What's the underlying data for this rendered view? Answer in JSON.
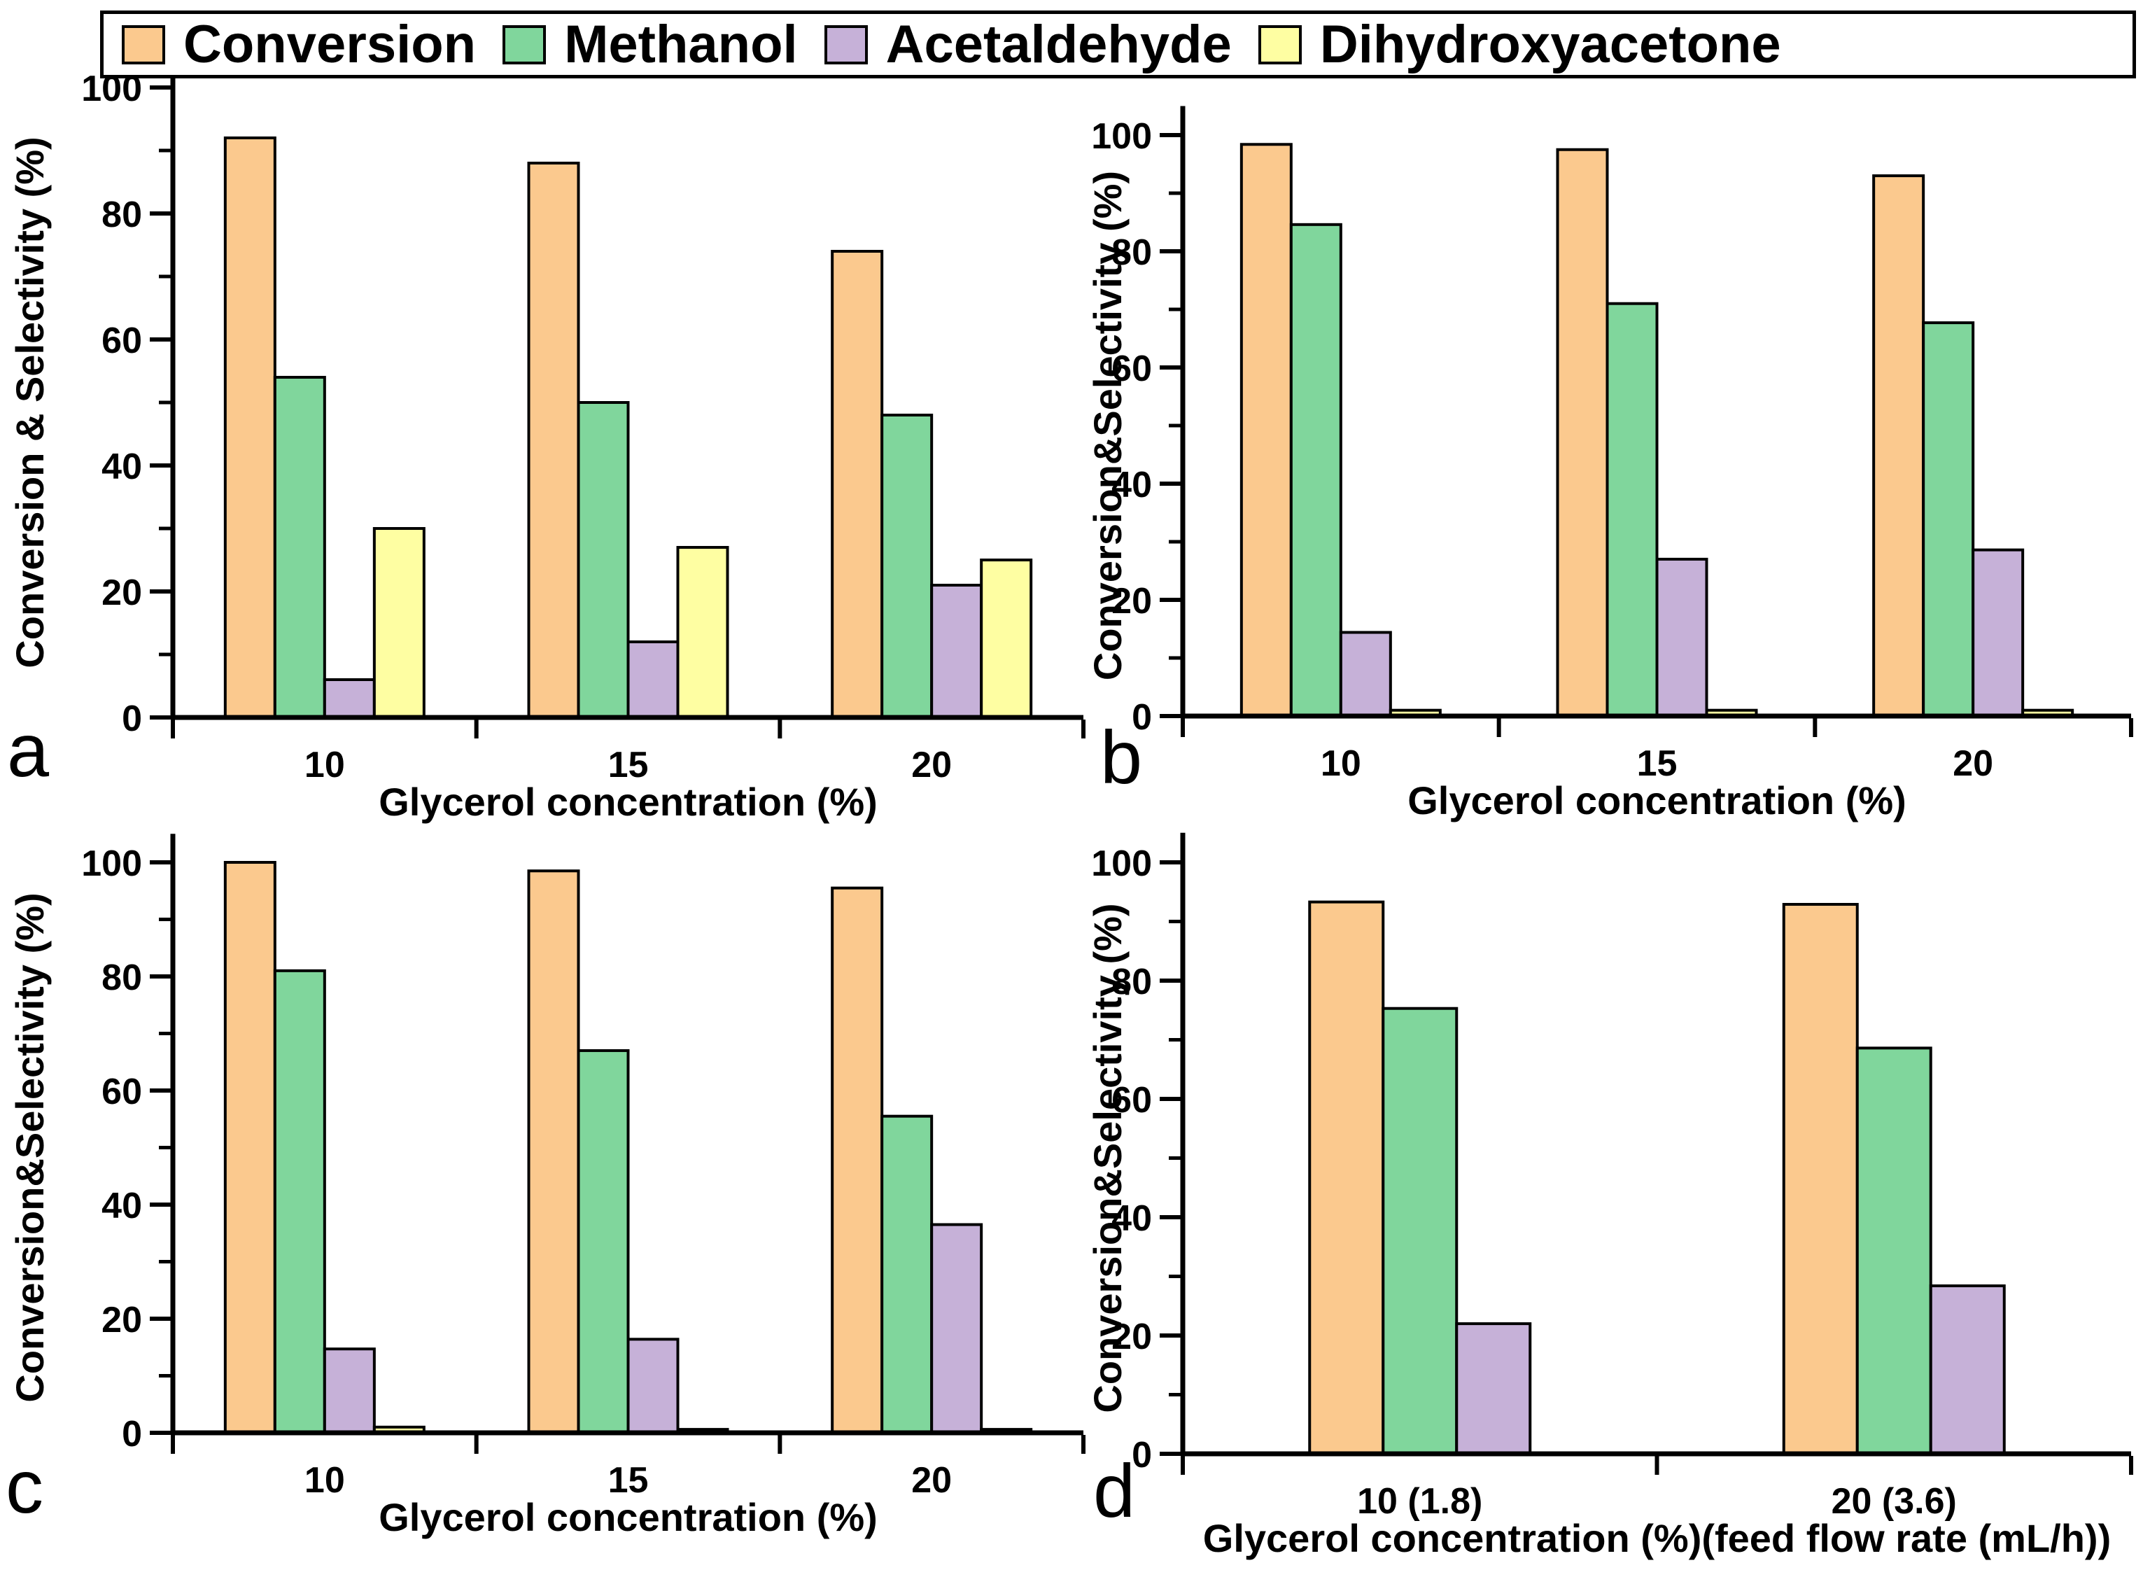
{
  "figure": {
    "background": "#ffffff",
    "text_color": "#000000",
    "legend_position": "top",
    "grid": false
  },
  "legend": {
    "items": [
      {
        "label": "Conversion",
        "color": "#FBC98E"
      },
      {
        "label": "Methanol",
        "color": "#80D69C"
      },
      {
        "label": "Acetaldehyde",
        "color": "#C6B1D8"
      },
      {
        "label": "Dihydroxyacetone",
        "color": "#FEFEA2"
      }
    ]
  },
  "chart_data": [
    {
      "type": "bar",
      "panel_letter": "a",
      "xlabel": "Glycerol concentration (%)",
      "ylabel": "Conversion & Selectivity (%)",
      "categories": [
        "10",
        "15",
        "20"
      ],
      "ylim": [
        0,
        105
      ],
      "yticks": [
        0,
        20,
        40,
        60,
        80,
        100
      ],
      "minor_tick_step": 10,
      "series": [
        {
          "name": "Conversion",
          "values": [
            92,
            88,
            74
          ]
        },
        {
          "name": "Methanol",
          "values": [
            54,
            50,
            48
          ]
        },
        {
          "name": "Acetaldehyde",
          "values": [
            6,
            12,
            21
          ]
        },
        {
          "name": "Dihydroxyacetone",
          "values": [
            30,
            27,
            25
          ]
        }
      ]
    },
    {
      "type": "bar",
      "panel_letter": "b",
      "xlabel": "Glycerol concentration (%)",
      "ylabel": "Conversion&Selectivity (%)",
      "categories": [
        "10",
        "15",
        "20"
      ],
      "ylim": [
        0,
        105
      ],
      "yticks": [
        0,
        20,
        40,
        60,
        80,
        100
      ],
      "minor_tick_step": 10,
      "series": [
        {
          "name": "Conversion",
          "values": [
            98.4,
            97.5,
            93
          ]
        },
        {
          "name": "Methanol",
          "values": [
            84.6,
            71,
            67.7
          ]
        },
        {
          "name": "Acetaldehyde",
          "values": [
            14.4,
            27,
            28.6
          ]
        },
        {
          "name": "Dihydroxyacetone",
          "values": [
            1,
            1,
            1
          ]
        }
      ]
    },
    {
      "type": "bar",
      "panel_letter": "c",
      "xlabel": "Glycerol concentration (%)",
      "ylabel": "Conversion&Selectivity (%)",
      "categories": [
        "10",
        "15",
        "20"
      ],
      "ylim": [
        0,
        105
      ],
      "yticks": [
        0,
        20,
        40,
        60,
        80,
        100
      ],
      "minor_tick_step": 10,
      "series": [
        {
          "name": "Conversion",
          "values": [
            100,
            98.5,
            95.5
          ]
        },
        {
          "name": "Methanol",
          "values": [
            81,
            67,
            55.5
          ]
        },
        {
          "name": "Acetaldehyde",
          "values": [
            14.7,
            16.4,
            36.5
          ]
        },
        {
          "name": "Dihydroxyacetone",
          "values": [
            1,
            0.6,
            0.6
          ]
        }
      ]
    },
    {
      "type": "bar",
      "panel_letter": "d",
      "xlabel": "Glycerol concentration (%)(feed flow rate (mL/h))",
      "ylabel": "Conversion&Selectivity (%)",
      "categories": [
        "10 (1.8)",
        "20 (3.6)"
      ],
      "ylim": [
        0,
        105
      ],
      "yticks": [
        0,
        20,
        40,
        60,
        80,
        100
      ],
      "minor_tick_step": 10,
      "series": [
        {
          "name": "Conversion",
          "values": [
            93.3,
            92.9
          ]
        },
        {
          "name": "Methanol",
          "values": [
            75.3,
            68.6
          ]
        },
        {
          "name": "Acetaldehyde",
          "values": [
            22,
            28.4
          ]
        }
      ]
    }
  ]
}
